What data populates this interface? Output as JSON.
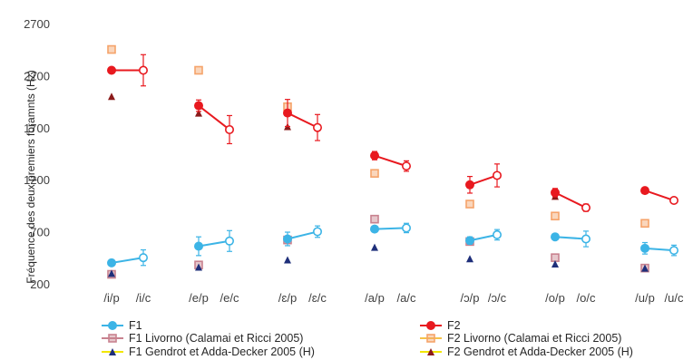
{
  "chart_data": {
    "type": "line",
    "title": "",
    "xlabel": "",
    "ylabel": "Fréquence des deux premiers foramnts (Hz)",
    "ylim": [
      200,
      2700
    ],
    "yticks": [
      200,
      700,
      1200,
      1700,
      2200,
      2700
    ],
    "grid": false,
    "legend_position": "bottom",
    "categories": [
      "/i/p",
      "/i/c",
      "/e/p",
      "/e/c",
      "/ɛ/p",
      "/ɛ/c",
      "/a/p",
      "/a/c",
      "/ɔ/p",
      "/ɔ/c",
      "/o/p",
      "/o/c",
      "/u/p",
      "/u/c"
    ],
    "series": [
      {
        "name": "F1",
        "color": "#3cb4e6",
        "style": "line",
        "values": [
          410,
          460,
          570,
          620,
          640,
          710,
          735,
          745,
          625,
          680,
          660,
          640,
          550,
          530
        ],
        "errors": [
          30,
          75,
          90,
          100,
          65,
          55,
          20,
          45,
          35,
          50,
          25,
          75,
          55,
          50
        ]
      },
      {
        "name": "F2",
        "color": "#e8191f",
        "style": "line",
        "values": [
          2260,
          2260,
          1920,
          1690,
          1850,
          1710,
          1440,
          1340,
          1160,
          1250,
          1085,
          940,
          1105,
          1010
        ],
        "errors": [
          0,
          150,
          55,
          135,
          130,
          125,
          40,
          50,
          80,
          110,
          40,
          35,
          15,
          15
        ]
      },
      {
        "name": "F1 Livorno (Calamai et Ricci 2005)",
        "color": "#c8828f",
        "style": "square",
        "values": [
          300,
          null,
          390,
          null,
          630,
          null,
          830,
          null,
          615,
          null,
          460,
          null,
          360,
          null
        ]
      },
      {
        "name": "F2 Livorno (Calamai et Ricci 2005)",
        "color": "#f5a36a",
        "style": "square",
        "values": [
          2460,
          null,
          2260,
          null,
          1910,
          null,
          1270,
          null,
          975,
          null,
          860,
          null,
          790,
          null
        ]
      },
      {
        "name": "F1 Gendrot et Adda-Decker 2005 (H)",
        "color": "#1f2f7a",
        "style": "triangle",
        "values": [
          310,
          null,
          370,
          null,
          440,
          null,
          560,
          null,
          450,
          null,
          400,
          null,
          360,
          null
        ]
      },
      {
        "name": "F2 Gendrot et Adda-Decker 2005 (H)",
        "color": "#8b1a1a",
        "style": "triangle",
        "values": [
          2010,
          null,
          1850,
          null,
          1720,
          null,
          1450,
          null,
          1170,
          null,
          1050,
          null,
          1110,
          null
        ]
      }
    ],
    "legend": [
      {
        "label": "F1",
        "marker_color": "#3cb4e6",
        "line_color": "#3cb4e6",
        "marker": "circle"
      },
      {
        "label": "F2",
        "marker_color": "#e8191f",
        "line_color": "#e8191f",
        "marker": "circle"
      },
      {
        "label": "F1 Livorno (Calamai et Ricci 2005)",
        "marker_color": "#c8828f",
        "line_color": "#c8828f",
        "marker": "square"
      },
      {
        "label": "F2 Livorno (Calamai et Ricci 2005)",
        "marker_color": "#f5a36a",
        "line_color": "#f5c24a",
        "marker": "square"
      },
      {
        "label": "F1 Gendrot et Adda-Decker 2005 (H)",
        "marker_color": "#1f2f7a",
        "line_color": "#f2e600",
        "marker": "triangle"
      },
      {
        "label": "F2 Gendrot et Adda-Decker 2005 (H)",
        "marker_color": "#8b1a1a",
        "line_color": "#f2e600",
        "marker": "triangle"
      }
    ]
  }
}
